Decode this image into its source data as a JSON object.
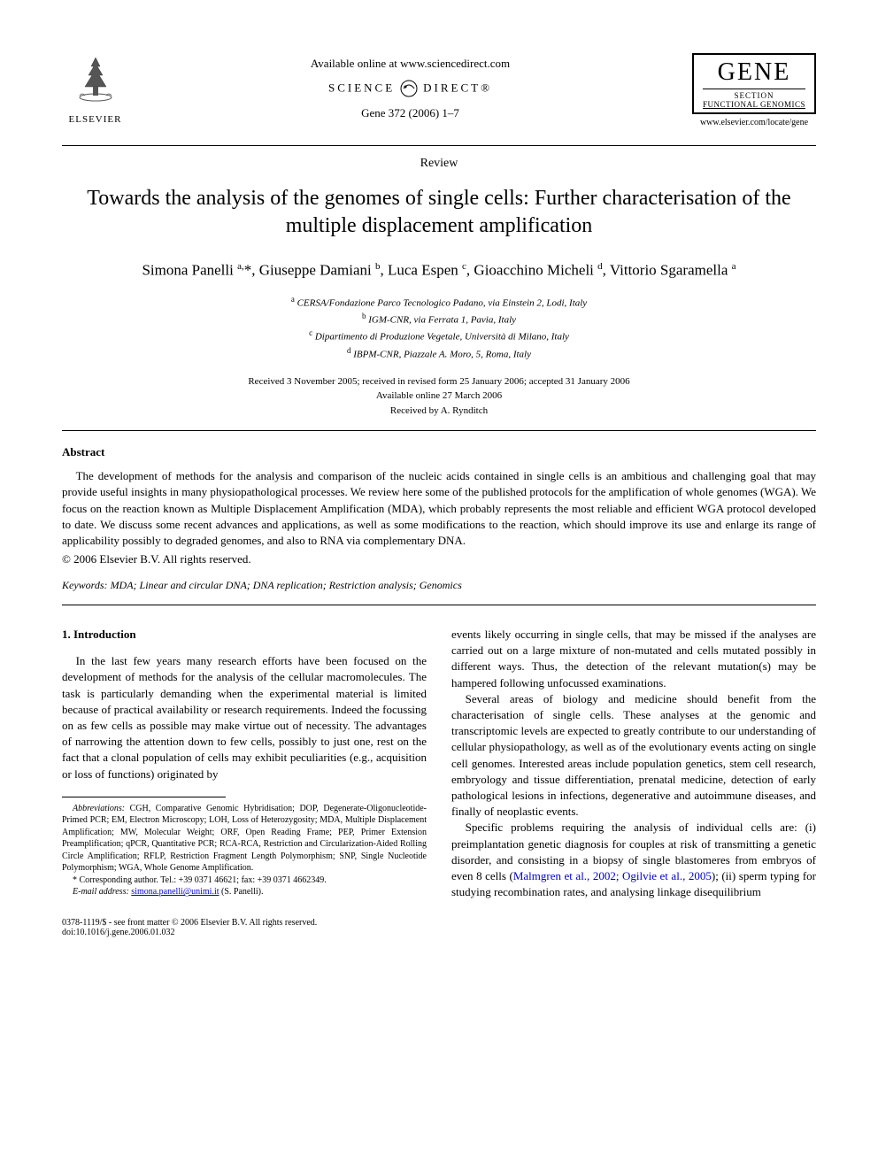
{
  "header": {
    "elsevier_label": "ELSEVIER",
    "available_online": "Available online at www.sciencedirect.com",
    "science": "SCIENCE",
    "direct": "DIRECT®",
    "citation": "Gene 372 (2006) 1–7",
    "gene_title": "GENE",
    "gene_section": "SECTION",
    "gene_subsection": "FUNCTIONAL GENOMICS",
    "journal_url": "www.elsevier.com/locate/gene"
  },
  "review_label": "Review",
  "title": "Towards the analysis of the genomes of single cells: Further characterisation of the multiple displacement amplification",
  "authors_html": "Simona Panelli <sup>a,</sup>*, Giuseppe Damiani <sup>b</sup>, Luca Espen <sup>c</sup>, Gioacchino Micheli <sup>d</sup>, Vittorio Sgaramella <sup>a</sup>",
  "affiliations": [
    {
      "sup": "a",
      "text": "CERSA/Fondazione Parco Tecnologico Padano, via Einstein 2, Lodi, Italy"
    },
    {
      "sup": "b",
      "text": "IGM-CNR, via Ferrata 1, Pavia, Italy"
    },
    {
      "sup": "c",
      "text": "Dipartimento di Produzione Vegetale, Università di Milano, Italy"
    },
    {
      "sup": "d",
      "text": "IBPM-CNR, Piazzale A. Moro, 5, Roma, Italy"
    }
  ],
  "dates": {
    "received": "Received 3 November 2005; received in revised form 25 January 2006; accepted 31 January 2006",
    "online": "Available online 27 March 2006",
    "received_by": "Received by A. Rynditch"
  },
  "abstract": {
    "heading": "Abstract",
    "text": "The development of methods for the analysis and comparison of the nucleic acids contained in single cells is an ambitious and challenging goal that may provide useful insights in many physiopathological processes. We review here some of the published protocols for the amplification of whole genomes (WGA). We focus on the reaction known as Multiple Displacement Amplification (MDA), which probably represents the most reliable and efficient WGA protocol developed to date. We discuss some recent advances and applications, as well as some modifications to the reaction, which should improve its use and enlarge its range of applicability possibly to degraded genomes, and also to RNA via complementary DNA.",
    "copyright": "© 2006 Elsevier B.V. All rights reserved."
  },
  "keywords": {
    "label": "Keywords:",
    "text": " MDA; Linear and circular DNA; DNA replication; Restriction analysis; Genomics"
  },
  "body": {
    "section_heading": "1. Introduction",
    "left_p1": "In the last few years many research efforts have been focused on the development of methods for the analysis of the cellular macromolecules. The task is particularly demanding when the experimental material is limited because of practical availability or research requirements. Indeed the focussing on as few cells as possible may make virtue out of necessity. The advantages of narrowing the attention down to few cells, possibly to just one, rest on the fact that a clonal population of cells may exhibit peculiarities (e.g., acquisition or loss of functions) originated by",
    "right_p1": "events likely occurring in single cells, that may be missed if the analyses are carried out on a large mixture of non-mutated and cells mutated possibly in different ways. Thus, the detection of the relevant mutation(s) may be hampered following unfocussed examinations.",
    "right_p2": "Several areas of biology and medicine should benefit from the characterisation of single cells. These analyses at the genomic and transcriptomic levels are expected to greatly contribute to our understanding of cellular physiopathology, as well as of the evolutionary events acting on single cell genomes. Interested areas include population genetics, stem cell research, embryology and tissue differentiation, prenatal medicine, detection of early pathological lesions in infections, degenerative and autoimmune diseases, and finally of neoplastic events.",
    "right_p3_pre": "Specific problems requiring the analysis of individual cells are: (i) preimplantation genetic diagnosis for couples at risk of transmitting a genetic disorder, and consisting in a biopsy of single blastomeres from embryos of even 8 cells (",
    "right_p3_ref": "Malmgren et al., 2002; Ogilvie et al., 2005",
    "right_p3_post": "); (ii) sperm typing for studying recombination rates, and analysing linkage disequilibrium"
  },
  "footnotes": {
    "abbrev_label": "Abbreviations:",
    "abbrev_text": " CGH, Comparative Genomic Hybridisation; DOP, Degenerate-Oligonucleotide-Primed PCR; EM, Electron Microscopy; LOH, Loss of Heterozygosity; MDA, Multiple Displacement Amplification; MW, Molecular Weight; ORF, Open Reading Frame; PEP, Primer Extension Preamplification; qPCR, Quantitative PCR; RCA-RCA, Restriction and Circularization-Aided Rolling Circle Amplification; RFLP, Restriction Fragment Length Polymorphism; SNP, Single Nucleotide Polymorphism; WGA, Whole Genome Amplification.",
    "corr_label": "* Corresponding author.",
    "corr_text": " Tel.: +39 0371 46621; fax: +39 0371 4662349.",
    "email_label": "E-mail address:",
    "email": "simona.panelli@unimi.it",
    "email_suffix": " (S. Panelli)."
  },
  "footer": {
    "issn": "0378-1119/$ - see front matter © 2006 Elsevier B.V. All rights reserved.",
    "doi": "doi:10.1016/j.gene.2006.01.032"
  },
  "colors": {
    "link": "#0000cc",
    "text": "#000000",
    "background": "#ffffff"
  }
}
